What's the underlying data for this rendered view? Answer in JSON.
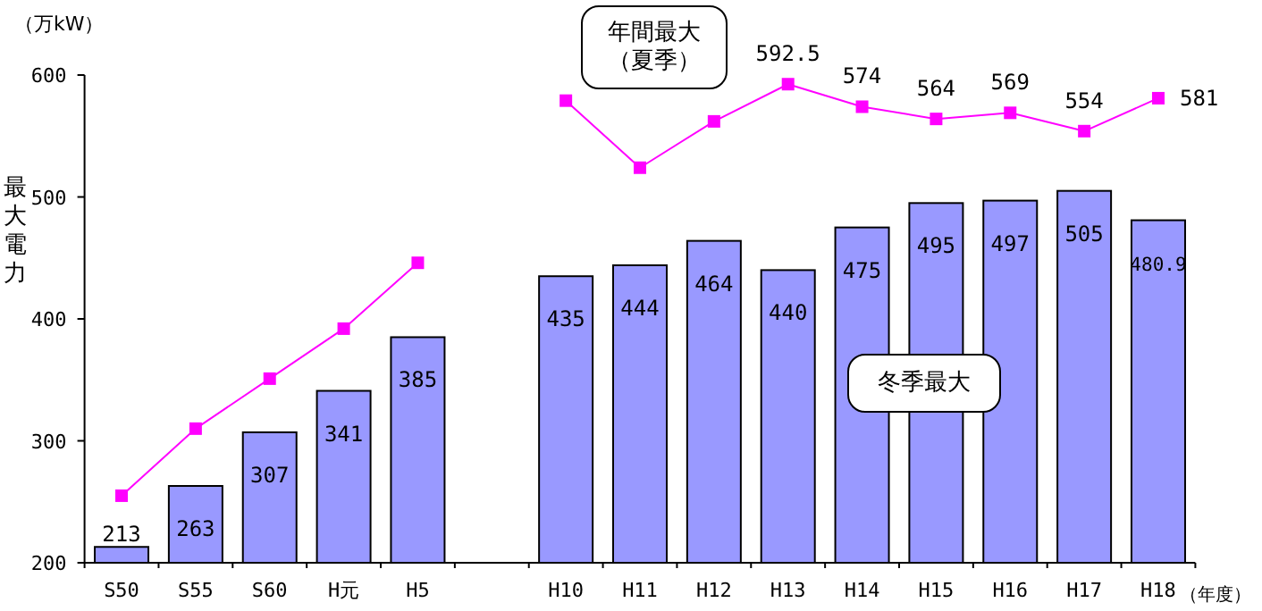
{
  "chart_data": {
    "type": "bar",
    "ylabel": "最大電力",
    "xlabel": "（年度）",
    "annotations": [
      "（万kW）"
    ],
    "categories": [
      "S50",
      "S55",
      "S60",
      "H元",
      "H5",
      null,
      "H10",
      "H11",
      "H12",
      "H13",
      "H14",
      "H15",
      "H16",
      "H17",
      "H18"
    ],
    "ylim": [
      200,
      600
    ],
    "yticks": [
      200,
      300,
      400,
      500,
      600
    ],
    "series": [
      {
        "name": "冬季最大",
        "color": "#9999ff",
        "values": [
          213,
          263,
          307,
          341,
          385,
          null,
          435,
          444,
          464,
          440,
          475,
          495,
          497,
          505,
          480.9
        ],
        "value_labels": [
          "213",
          "263",
          "307",
          "341",
          "385",
          null,
          "435",
          "444",
          "464",
          "440",
          "475",
          "495",
          "497",
          "505",
          "480.9"
        ]
      },
      {
        "type": "line",
        "name": "年間最大（夏季）",
        "color": "#ff00ff",
        "marker": "square",
        "values": [
          255,
          310,
          351,
          392,
          446,
          null,
          579,
          524,
          562,
          592.5,
          574,
          564,
          569,
          554,
          581
        ],
        "value_labels": [
          null,
          null,
          null,
          null,
          null,
          null,
          null,
          null,
          null,
          "592.5",
          "574",
          "564",
          "569",
          "554",
          "581"
        ]
      }
    ]
  }
}
